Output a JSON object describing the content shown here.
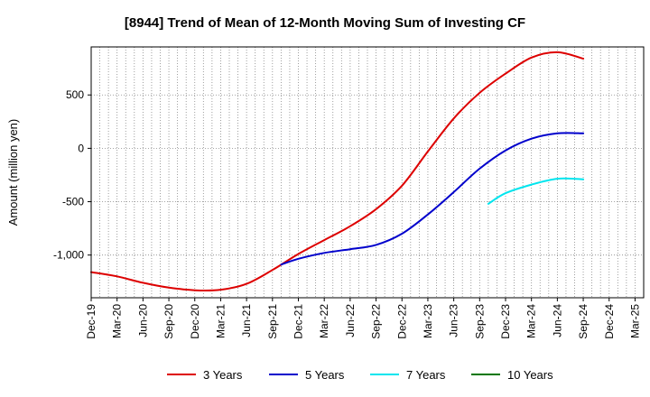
{
  "chart_data": {
    "type": "line",
    "title": "[8944]  Trend of Mean of 12-Month Moving Sum of Investing CF",
    "xlabel": "",
    "ylabel": "Amount (million yen)",
    "ylim": [
      -1400,
      950
    ],
    "yticks": [
      500,
      0,
      -500,
      -1000
    ],
    "ytick_labels": [
      "500",
      "0",
      "-500",
      "-1,000"
    ],
    "x_start": "Dec-19",
    "x_end": "Mar-25",
    "month_count": 64,
    "xtick_labels": [
      "Dec-19",
      "Mar-20",
      "Jun-20",
      "Sep-20",
      "Dec-20",
      "Mar-21",
      "Jun-21",
      "Sep-21",
      "Dec-21",
      "Mar-22",
      "Jun-22",
      "Sep-22",
      "Dec-22",
      "Mar-23",
      "Jun-23",
      "Sep-23",
      "Dec-23",
      "Mar-24",
      "Jun-24",
      "Sep-24",
      "Dec-24",
      "Mar-25"
    ],
    "grid": true,
    "legend_position": "bottom",
    "series": [
      {
        "name": "3 Years",
        "color": "#dd0000",
        "points": [
          [
            0,
            -1160
          ],
          [
            3,
            -1200
          ],
          [
            6,
            -1260
          ],
          [
            9,
            -1305
          ],
          [
            12,
            -1330
          ],
          [
            15,
            -1325
          ],
          [
            18,
            -1270
          ],
          [
            21,
            -1140
          ],
          [
            24,
            -990
          ],
          [
            27,
            -860
          ],
          [
            30,
            -730
          ],
          [
            33,
            -570
          ],
          [
            36,
            -350
          ],
          [
            39,
            -30
          ],
          [
            42,
            280
          ],
          [
            45,
            520
          ],
          [
            48,
            700
          ],
          [
            51,
            850
          ],
          [
            54,
            900
          ],
          [
            57,
            840
          ]
        ]
      },
      {
        "name": "5 Years",
        "color": "#0000cc",
        "points": [
          [
            22,
            -1090
          ],
          [
            24,
            -1035
          ],
          [
            27,
            -980
          ],
          [
            30,
            -945
          ],
          [
            33,
            -905
          ],
          [
            36,
            -800
          ],
          [
            39,
            -620
          ],
          [
            42,
            -410
          ],
          [
            45,
            -190
          ],
          [
            48,
            -20
          ],
          [
            51,
            90
          ],
          [
            54,
            140
          ],
          [
            57,
            140
          ]
        ]
      },
      {
        "name": "7 Years",
        "color": "#00e5ee",
        "points": [
          [
            46,
            -520
          ],
          [
            48,
            -420
          ],
          [
            51,
            -340
          ],
          [
            54,
            -285
          ],
          [
            57,
            -290
          ]
        ]
      },
      {
        "name": "10 Years",
        "color": "#007700",
        "points": []
      }
    ]
  }
}
